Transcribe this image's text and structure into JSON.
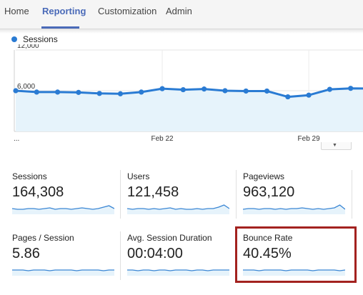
{
  "nav": {
    "tabs": [
      {
        "label": "Home"
      },
      {
        "label": "Reporting"
      },
      {
        "label": "Customization"
      },
      {
        "label": "Admin"
      }
    ],
    "active_tab": "Reporting"
  },
  "chart_data": {
    "type": "line",
    "series": [
      {
        "name": "Sessions",
        "values": [
          6000,
          5800,
          5800,
          5750,
          5600,
          5550,
          5800,
          6300,
          6150,
          6250,
          6000,
          5950,
          5950,
          5100,
          5350,
          6200,
          6350,
          6300
        ]
      }
    ],
    "x_ticks": [
      "Feb 22",
      "Feb 29"
    ],
    "x_tick_index": [
      7,
      14
    ],
    "y_ticks": [
      12000,
      6000
    ],
    "y_tick_labels": [
      "12,000",
      "6,000"
    ],
    "ylim": [
      0,
      12000
    ],
    "color": "#2a7bd3",
    "fill_color": "#e6f3fb",
    "grid": true,
    "legend": "top-left",
    "start_marker": "..."
  },
  "metrics": [
    {
      "label": "Sessions",
      "value": "164,308"
    },
    {
      "label": "Users",
      "value": "121,458"
    },
    {
      "label": "Pageviews",
      "value": "963,120"
    },
    {
      "label": "Pages / Session",
      "value": "5.86"
    },
    {
      "label": "Avg. Session Duration",
      "value": "00:04:00"
    },
    {
      "label": "Bounce Rate",
      "value": "40.45%"
    }
  ],
  "highlighted_metric": "Bounce Rate",
  "highlight_color": "#a3221f"
}
